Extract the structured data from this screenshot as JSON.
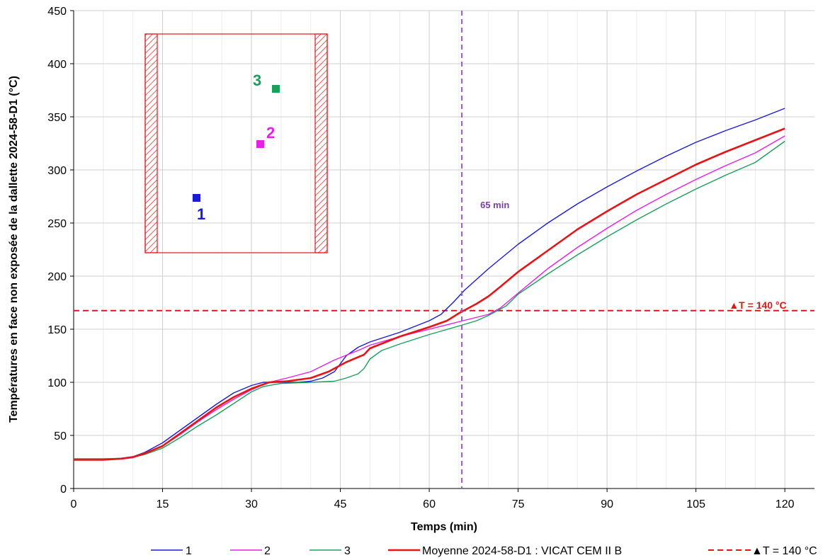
{
  "chart_data": {
    "type": "line",
    "xlabel": "Temps (min)",
    "ylabel": "Températures en face non exposée de la dallette 2024-58-D1 (°C)",
    "xlim": [
      0,
      125
    ],
    "ylim": [
      0,
      450
    ],
    "xticks": [
      0,
      15,
      30,
      45,
      60,
      75,
      90,
      105,
      120
    ],
    "yticks": [
      0,
      50,
      100,
      150,
      200,
      250,
      300,
      350,
      400,
      450
    ],
    "grid": true,
    "legend_position": "bottom",
    "series": [
      {
        "name": "1",
        "color": "#1a1adc",
        "dash": "solid",
        "points": [
          [
            0,
            27
          ],
          [
            5,
            27.5
          ],
          [
            8,
            28.5
          ],
          [
            10,
            30
          ],
          [
            12,
            34
          ],
          [
            15,
            43
          ],
          [
            18,
            55
          ],
          [
            21,
            67
          ],
          [
            24,
            79
          ],
          [
            27,
            90
          ],
          [
            30,
            97
          ],
          [
            32,
            100
          ],
          [
            35,
            100
          ],
          [
            38,
            100
          ],
          [
            40,
            101
          ],
          [
            42,
            104
          ],
          [
            44,
            110
          ],
          [
            46,
            125
          ],
          [
            48,
            133
          ],
          [
            50,
            138
          ],
          [
            55,
            147
          ],
          [
            60,
            158
          ],
          [
            62,
            164
          ],
          [
            64,
            175
          ],
          [
            66,
            187
          ],
          [
            70,
            207
          ],
          [
            75,
            230
          ],
          [
            80,
            250
          ],
          [
            85,
            268
          ],
          [
            90,
            284
          ],
          [
            95,
            299
          ],
          [
            100,
            313
          ],
          [
            105,
            326
          ],
          [
            110,
            337
          ],
          [
            115,
            347
          ],
          [
            120,
            358
          ]
        ]
      },
      {
        "name": "2",
        "color": "#e61ee6",
        "dash": "solid",
        "points": [
          [
            0,
            27
          ],
          [
            5,
            27.5
          ],
          [
            8,
            28.5
          ],
          [
            10,
            30
          ],
          [
            12,
            33
          ],
          [
            15,
            40
          ],
          [
            18,
            51
          ],
          [
            21,
            63
          ],
          [
            24,
            74
          ],
          [
            27,
            84
          ],
          [
            30,
            93
          ],
          [
            33,
            100
          ],
          [
            36,
            104
          ],
          [
            40,
            110
          ],
          [
            44,
            121
          ],
          [
            48,
            130
          ],
          [
            50,
            135
          ],
          [
            55,
            143
          ],
          [
            60,
            150
          ],
          [
            65,
            157
          ],
          [
            70,
            164
          ],
          [
            72,
            170
          ],
          [
            75,
            184
          ],
          [
            80,
            207
          ],
          [
            85,
            227
          ],
          [
            90,
            245
          ],
          [
            95,
            262
          ],
          [
            100,
            277
          ],
          [
            105,
            291
          ],
          [
            110,
            304
          ],
          [
            115,
            316
          ],
          [
            120,
            332
          ]
        ]
      },
      {
        "name": "3",
        "color": "#1aa05a",
        "dash": "solid",
        "points": [
          [
            0,
            28
          ],
          [
            5,
            28
          ],
          [
            8,
            28.5
          ],
          [
            10,
            29.5
          ],
          [
            12,
            32
          ],
          [
            15,
            38
          ],
          [
            18,
            48
          ],
          [
            21,
            59
          ],
          [
            24,
            69
          ],
          [
            27,
            80
          ],
          [
            30,
            91
          ],
          [
            32,
            96
          ],
          [
            35,
            99
          ],
          [
            40,
            100
          ],
          [
            44,
            101
          ],
          [
            46,
            104
          ],
          [
            48,
            108
          ],
          [
            49,
            113
          ],
          [
            50,
            122
          ],
          [
            52,
            130
          ],
          [
            55,
            136
          ],
          [
            60,
            145
          ],
          [
            65,
            153
          ],
          [
            68,
            158
          ],
          [
            70,
            163
          ],
          [
            73,
            172
          ],
          [
            75,
            183
          ],
          [
            80,
            202
          ],
          [
            85,
            220
          ],
          [
            90,
            237
          ],
          [
            95,
            253
          ],
          [
            100,
            268
          ],
          [
            105,
            282
          ],
          [
            110,
            295
          ],
          [
            115,
            307
          ],
          [
            120,
            327
          ]
        ]
      },
      {
        "name": "Moyenne 2024-58-D1 : VICAT CEM II B",
        "color": "#e61414",
        "dash": "solid",
        "points": [
          [
            0,
            27
          ],
          [
            5,
            27
          ],
          [
            8,
            28
          ],
          [
            10,
            29.5
          ],
          [
            12,
            33
          ],
          [
            15,
            40
          ],
          [
            18,
            52
          ],
          [
            21,
            64
          ],
          [
            24,
            76
          ],
          [
            27,
            86
          ],
          [
            30,
            94
          ],
          [
            33,
            100
          ],
          [
            36,
            101
          ],
          [
            40,
            104
          ],
          [
            43,
            110
          ],
          [
            46,
            119
          ],
          [
            49,
            126
          ],
          [
            50,
            132
          ],
          [
            55,
            143
          ],
          [
            60,
            152
          ],
          [
            63,
            158
          ],
          [
            65,
            165
          ],
          [
            68,
            174
          ],
          [
            70,
            181
          ],
          [
            72,
            190
          ],
          [
            75,
            204
          ],
          [
            80,
            224
          ],
          [
            85,
            244
          ],
          [
            90,
            261
          ],
          [
            95,
            277
          ],
          [
            100,
            291
          ],
          [
            105,
            305
          ],
          [
            110,
            317
          ],
          [
            115,
            328
          ],
          [
            120,
            339
          ]
        ]
      },
      {
        "name": "▲T = 140 °C",
        "color": "#e61414",
        "dash": "dashed",
        "points": [
          [
            0,
            167.5
          ],
          [
            125,
            167.5
          ]
        ]
      }
    ],
    "vertical_line": {
      "x": 65.5,
      "color": "#9b59c6",
      "label": "65 min"
    },
    "threshold_label": "▲T = 140 °C",
    "inset": {
      "sensors": [
        {
          "label": "1",
          "color": "#1a1adc"
        },
        {
          "label": "2",
          "color": "#e61ee6"
        },
        {
          "label": "3",
          "color": "#1aa05a"
        }
      ]
    }
  }
}
